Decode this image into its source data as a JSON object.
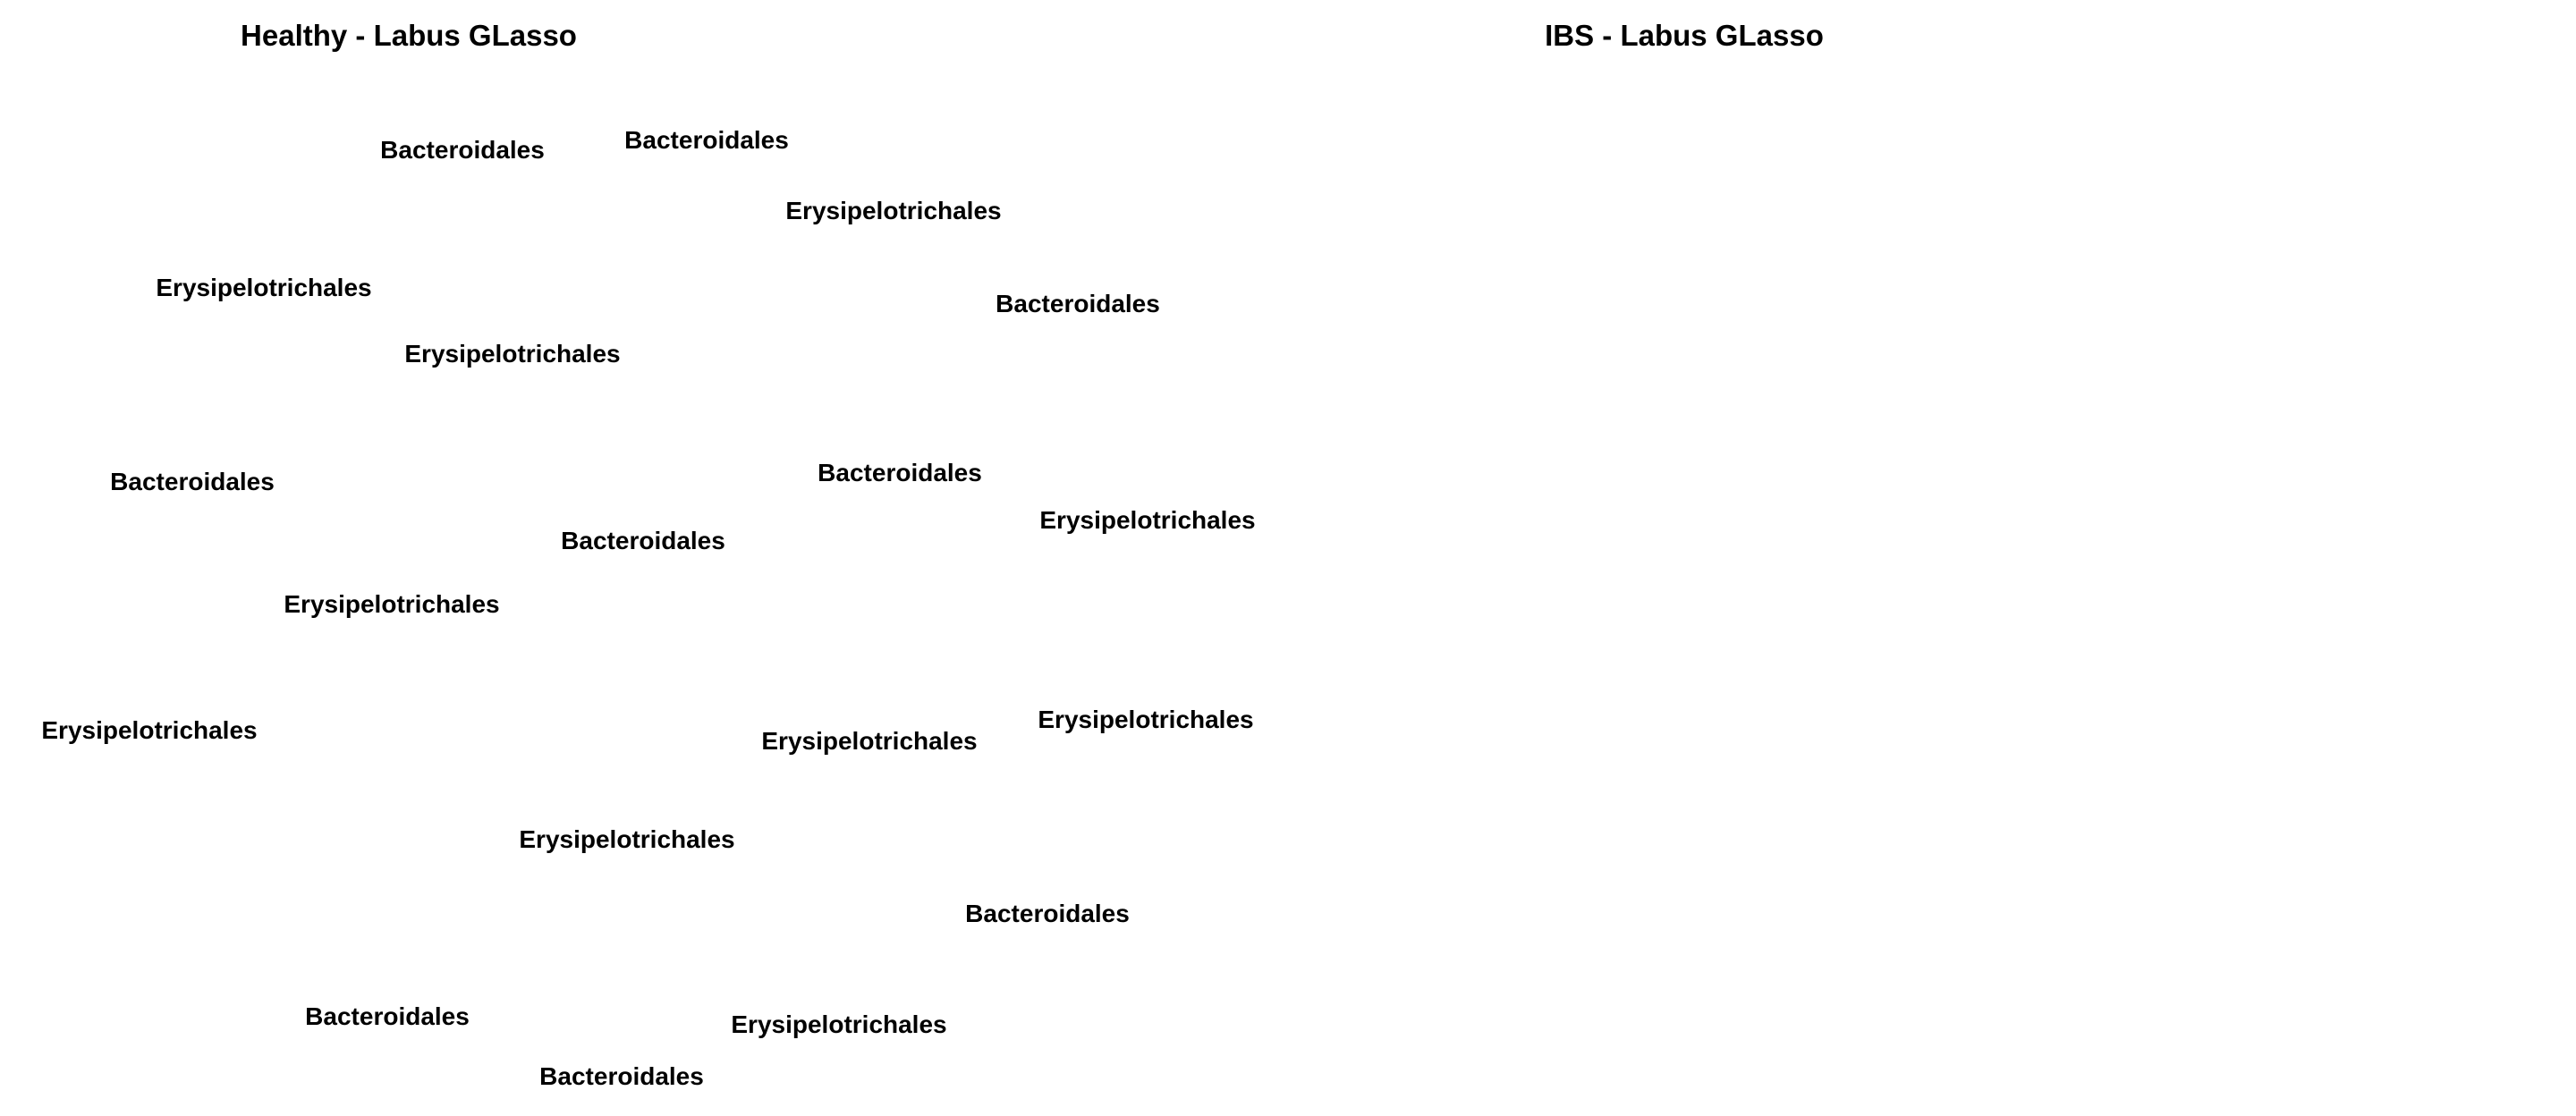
{
  "panels": [
    {
      "title": "Healthy - Labus GLasso",
      "nodes": [
        {
          "label": "Bacteroidales"
        },
        {
          "label": "Bacteroidales"
        },
        {
          "label": "Erysipelotrichales"
        },
        {
          "label": "Erysipelotrichales"
        },
        {
          "label": "Erysipelotrichales"
        },
        {
          "label": "Bacteroidales"
        },
        {
          "label": "Bacteroidales"
        },
        {
          "label": "Bacteroidales"
        },
        {
          "label": "Bacteroidales"
        },
        {
          "label": "Erysipelotrichales"
        },
        {
          "label": "Erysipelotrichales"
        },
        {
          "label": "Erysipelotrichales"
        },
        {
          "label": "Erysipelotrichales"
        },
        {
          "label": "Erysipelotrichales"
        },
        {
          "label": "Erysipelotrichales"
        },
        {
          "label": "Bacteroidales"
        },
        {
          "label": "Bacteroidales"
        },
        {
          "label": "Erysipelotrichales"
        },
        {
          "label": "Bacteroidales"
        }
      ]
    },
    {
      "title": "IBS - Labus GLasso",
      "nodes": []
    }
  ]
}
